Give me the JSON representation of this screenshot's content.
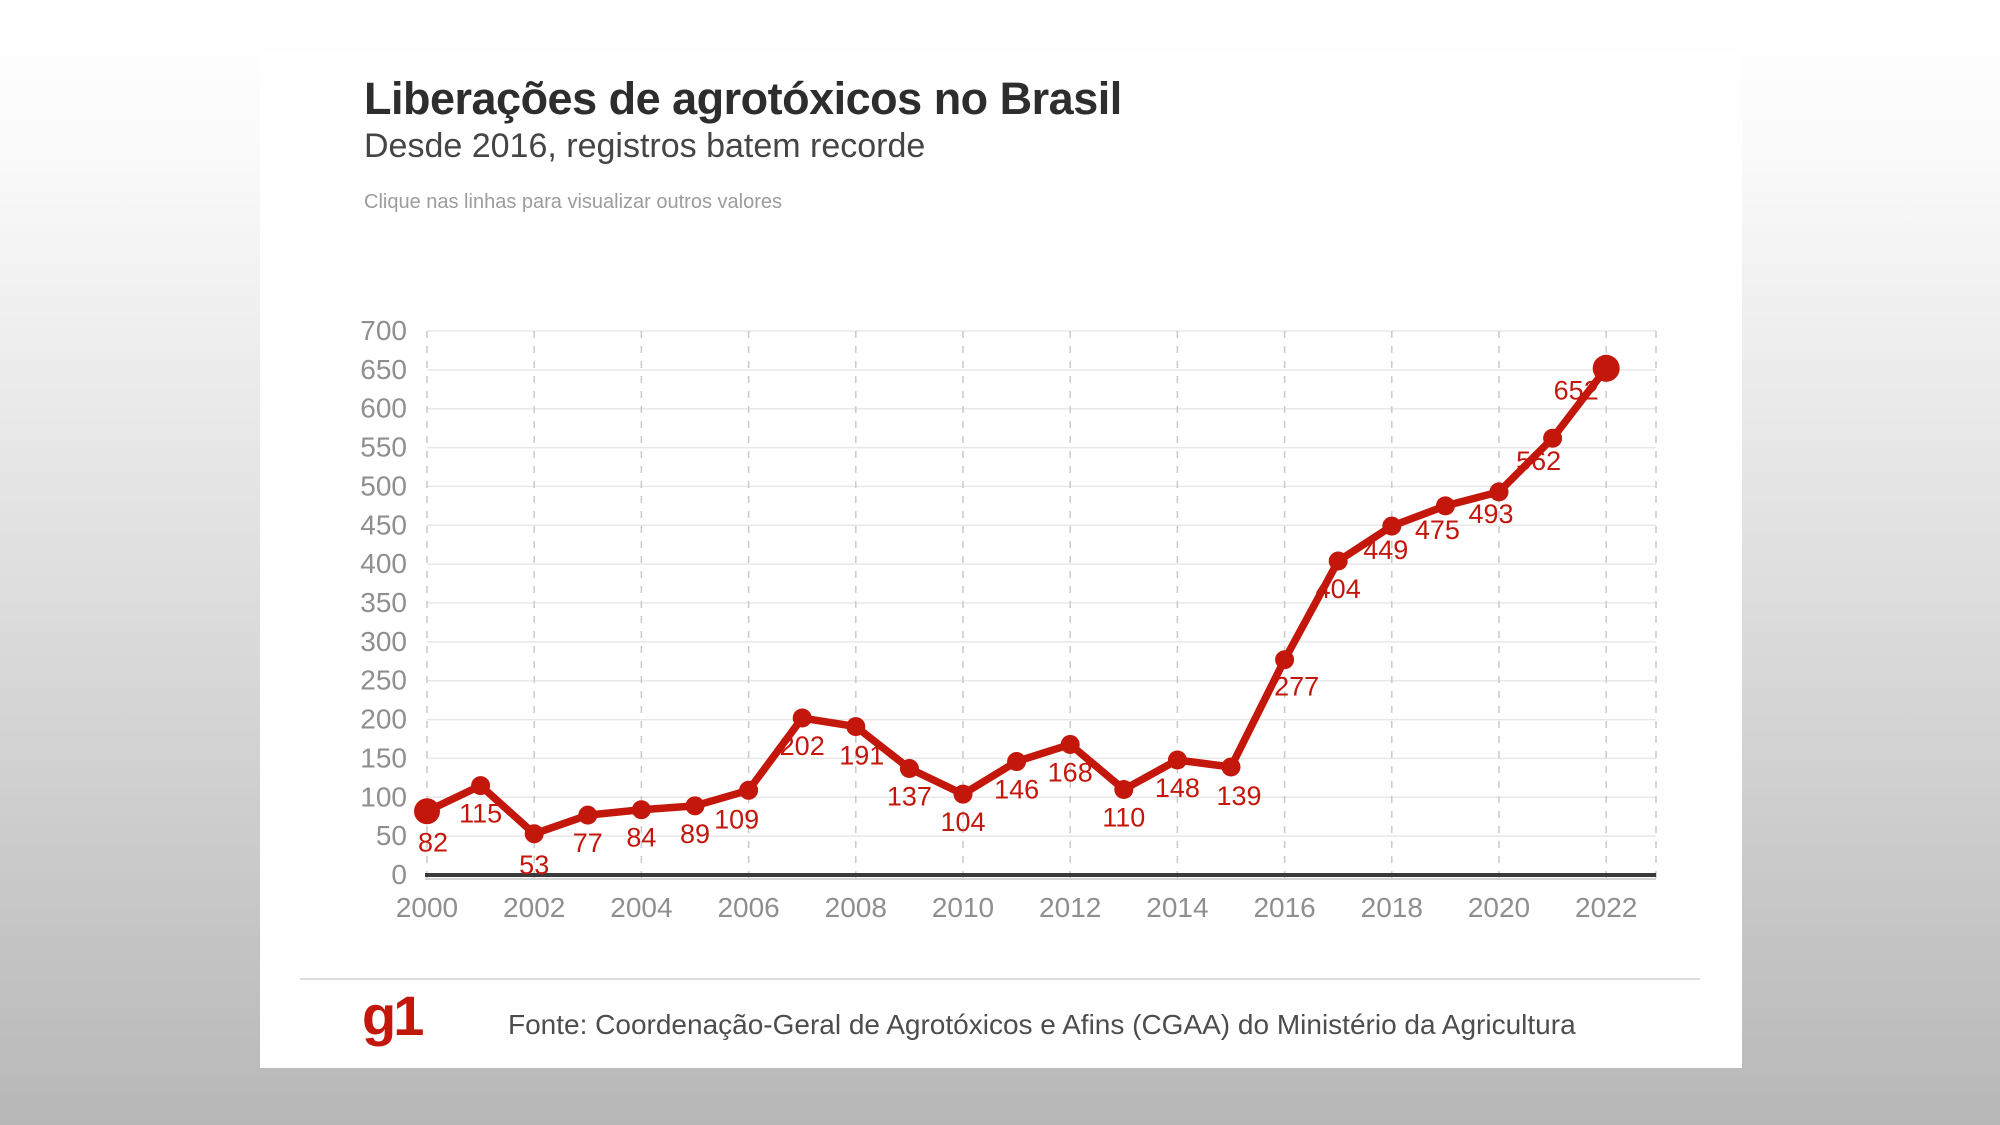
{
  "page": {
    "background_top_color": "#ffffff",
    "background_bottom_color": "#b7b7b7",
    "card_color": "#ffffff"
  },
  "card": {
    "title": "Liberações de agrotóxicos no Brasil",
    "subtitle": "Desde 2016, registros batem recorde",
    "note": "Clique nas linhas para visualizar outros valores",
    "footer": {
      "logo": "g1",
      "logo_color": "#c4170c",
      "source": "Fonte: Coordenação-Geral de Agrotóxicos e Afins (CGAA) do Ministério da Agricultura"
    }
  },
  "chart_data": {
    "type": "line",
    "title": "Liberações de agrotóxicos no Brasil",
    "subtitle": "Desde 2016, registros batem recorde",
    "x": [
      2000,
      2001,
      2002,
      2003,
      2004,
      2005,
      2006,
      2007,
      2008,
      2009,
      2010,
      2011,
      2012,
      2013,
      2014,
      2015,
      2016,
      2017,
      2018,
      2019,
      2020,
      2021,
      2022
    ],
    "series": [
      {
        "name": "Liberações de agrotóxicos",
        "values": [
          82,
          115,
          53,
          77,
          84,
          89,
          109,
          202,
          191,
          137,
          104,
          146,
          168,
          110,
          148,
          139,
          277,
          404,
          449,
          475,
          493,
          562,
          652
        ],
        "color": "#c4170c"
      }
    ],
    "data_labels": [
      "82",
      "115",
      "53",
      "77",
      "84",
      "89",
      "109",
      "202",
      "191",
      "137",
      "104",
      "146",
      "168",
      "110",
      "148",
      "139",
      "277",
      "404",
      "449",
      "475",
      "493",
      "562",
      "652"
    ],
    "x_tick_labels": [
      "2000",
      "2002",
      "2004",
      "2006",
      "2008",
      "2010",
      "2012",
      "2014",
      "2016",
      "2018",
      "2020",
      "2022"
    ],
    "y_ticks": [
      0,
      50,
      100,
      150,
      200,
      250,
      300,
      350,
      400,
      450,
      500,
      550,
      600,
      650,
      700
    ],
    "ylim": [
      0,
      700
    ],
    "xlabel": "",
    "ylabel": "",
    "grid": true,
    "h_grid_color": "#e8e8e8",
    "v_grid_color": "#c9c9c9",
    "axis_line_color": "#3a3a3a",
    "tick_label_color": "#8f8f8f",
    "legend": "none"
  }
}
